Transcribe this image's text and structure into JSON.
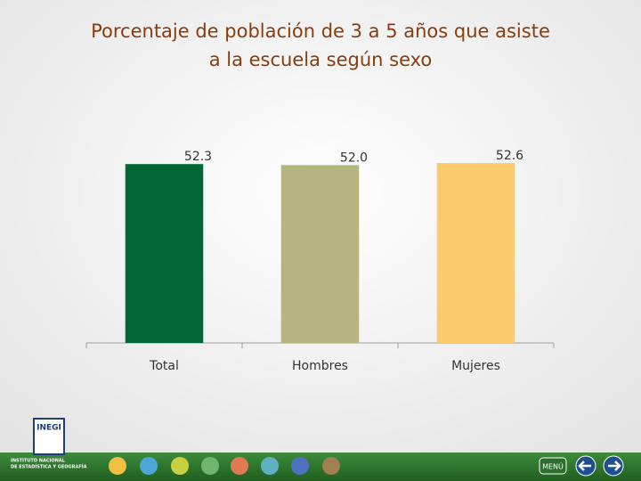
{
  "chart_data": {
    "type": "bar",
    "title": [
      "Porcentaje de población de 3 a 5 años que asiste",
      "a la escuela según sexo"
    ],
    "categories": [
      "Total",
      "Hombres",
      "Mujeres"
    ],
    "values": [
      52.3,
      52.0,
      52.6
    ],
    "value_labels": [
      "52.3",
      "52.0",
      "52.6"
    ],
    "colors": [
      "#006633",
      "#b5b57f",
      "#fccb6b"
    ],
    "ylim": [
      0,
      56
    ]
  },
  "footer": {
    "logo": "INEGI",
    "institute": [
      "INSTITUTO NACIONAL",
      "DE ESTADÍSTICA Y GEOGRAFÍA"
    ],
    "menu": "MENÚ"
  }
}
